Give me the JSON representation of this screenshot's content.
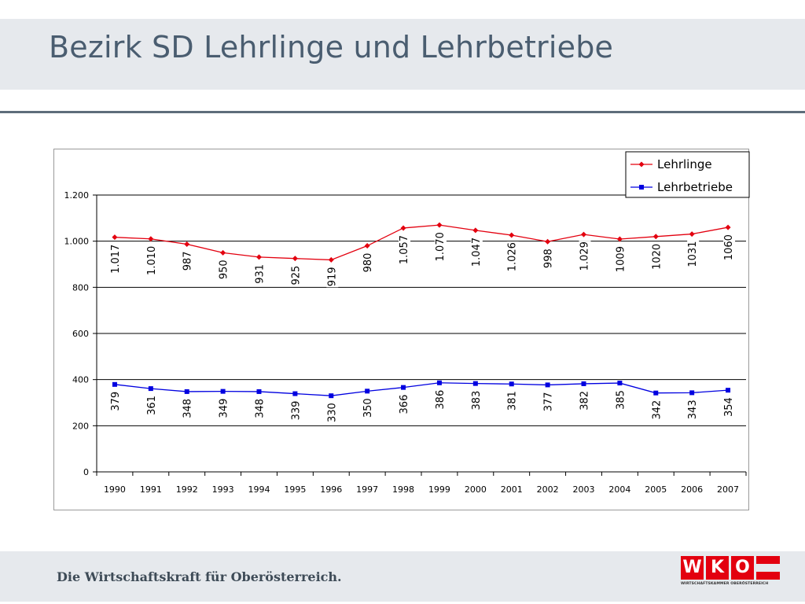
{
  "slide": {
    "title": "Bezirk SD Lehrlinge und Lehrbetriebe",
    "footer": "Die Wirtschaftskraft für Oberösterreich."
  },
  "logo": {
    "letters": [
      "W",
      "K",
      "O"
    ],
    "subtitle": "WIRTSCHAFTSKAMMER OBERÖSTERREICH",
    "color": "#e3000f"
  },
  "chart_data": {
    "type": "line",
    "title": "",
    "xlabel": "",
    "ylabel": "",
    "categories": [
      "1990",
      "1991",
      "1992",
      "1993",
      "1994",
      "1995",
      "1996",
      "1997",
      "1998",
      "1999",
      "2000",
      "2001",
      "2002",
      "2003",
      "2004",
      "2005",
      "2006",
      "2007"
    ],
    "ylim": [
      0,
      1200
    ],
    "yticks": [
      0,
      200,
      400,
      600,
      800,
      1000,
      1200
    ],
    "ytick_labels": [
      "0",
      "200",
      "400",
      "600",
      "800",
      "1.000",
      "1.200"
    ],
    "grid": true,
    "legend": "top-right",
    "series": [
      {
        "name": "Lehrlinge",
        "color": "#e3000f",
        "marker": "diamond",
        "values": [
          1017,
          1010,
          987,
          950,
          931,
          925,
          919,
          980,
          1057,
          1070,
          1047,
          1026,
          998,
          1029,
          1009,
          1020,
          1031,
          1060
        ],
        "labels": [
          "1.017",
          "1.010",
          "987",
          "950",
          "931",
          "925",
          "919",
          "980",
          "1.057",
          "1.070",
          "1.047",
          "1.026",
          "998",
          "1.029",
          "1009",
          "1020",
          "1031",
          "1060"
        ]
      },
      {
        "name": "Lehrbetriebe",
        "color": "#0000e0",
        "marker": "square",
        "values": [
          379,
          361,
          348,
          349,
          348,
          339,
          330,
          350,
          366,
          386,
          383,
          381,
          377,
          382,
          385,
          342,
          343,
          354
        ],
        "labels": [
          "379",
          "361",
          "348",
          "349",
          "348",
          "339",
          "330",
          "350",
          "366",
          "386",
          "383",
          "381",
          "377",
          "382",
          "385",
          "342",
          "343",
          "354"
        ]
      }
    ]
  }
}
